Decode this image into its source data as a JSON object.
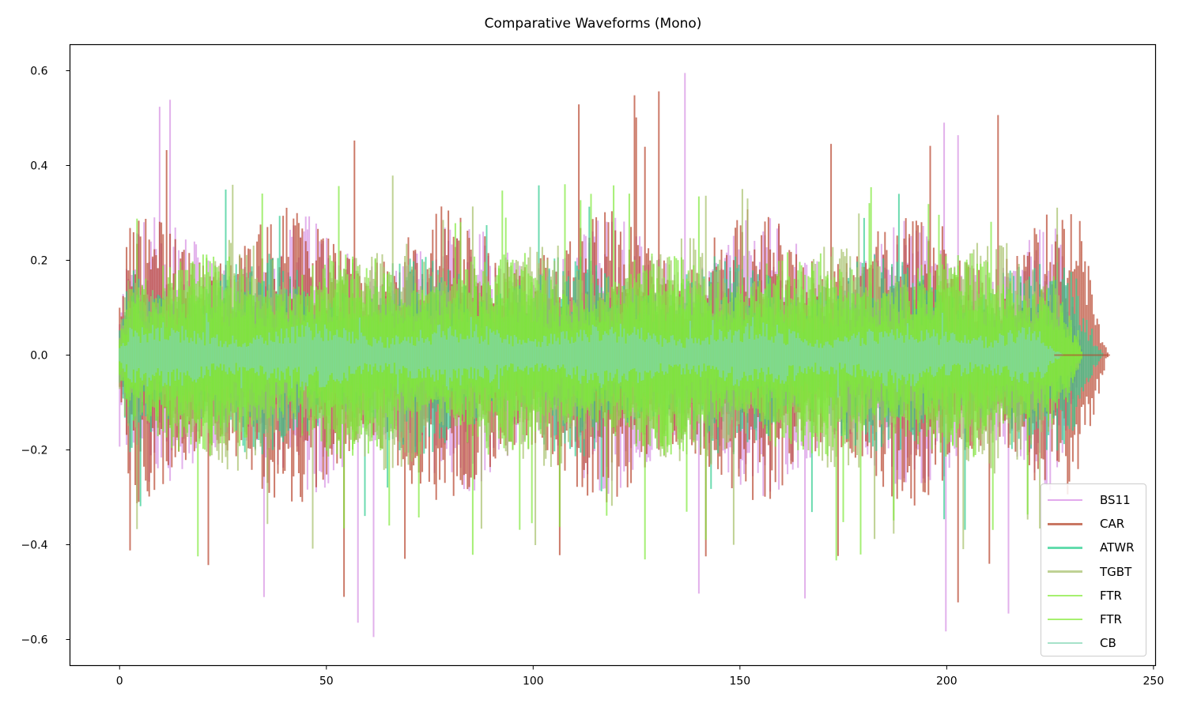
{
  "chart_data": {
    "type": "line",
    "title": "Comparative Waveforms (Mono)",
    "xlabel": "",
    "ylabel": "",
    "xlim": [
      -12,
      250.5
    ],
    "ylim": [
      -0.655,
      0.655
    ],
    "xticks": [
      0,
      50,
      100,
      150,
      200,
      250
    ],
    "xtick_labels": [
      "0",
      "50",
      "100",
      "150",
      "200",
      "250"
    ],
    "yticks": [
      0.6,
      0.4,
      0.2,
      0.0,
      -0.2,
      -0.4,
      -0.6
    ],
    "ytick_labels": [
      "0.6",
      "0.4",
      "0.2",
      "0.0",
      "−0.2",
      "−0.4",
      "−0.6"
    ],
    "grid": false,
    "legend_position": "lower right",
    "series": [
      {
        "name": "BS11",
        "color": "#d68fe3",
        "alpha": 0.7,
        "duration": 233,
        "peak_pos": 0.6,
        "peak_neg": -0.6,
        "typical_amp": 0.3
      },
      {
        "name": "CAR",
        "color": "#b7412a",
        "alpha": 0.7,
        "duration": 239,
        "peak_pos": 0.575,
        "peak_neg": -0.53,
        "typical_amp": 0.32
      },
      {
        "name": "ATWR",
        "color": "#2ecc8f",
        "alpha": 0.7,
        "duration": 238,
        "peak_pos": 0.36,
        "peak_neg": -0.37,
        "typical_amp": 0.22
      },
      {
        "name": "TGBT",
        "color": "#a4bf66",
        "alpha": 0.7,
        "duration": 233,
        "peak_pos": 0.38,
        "peak_neg": -0.42,
        "typical_amp": 0.25
      },
      {
        "name": "FTR",
        "color": "#7fe83a",
        "alpha": 0.7,
        "duration": 233,
        "peak_pos": 0.37,
        "peak_neg": -0.44,
        "typical_amp": 0.22
      },
      {
        "name": "FTR",
        "color": "#7fe83a",
        "alpha": 0.7,
        "duration": 233,
        "peak_pos": 0.37,
        "peak_neg": -0.44,
        "typical_amp": 0.22
      },
      {
        "name": "CB",
        "color": "#7fd6b2",
        "alpha": 0.7,
        "duration": 228,
        "peak_pos": 0.09,
        "peak_neg": -0.09,
        "typical_amp": 0.07
      }
    ],
    "annotations": []
  },
  "legend": {
    "items": [
      {
        "label": "BS11",
        "color": "#e2a9ec"
      },
      {
        "label": "CAR",
        "color": "#c97763"
      },
      {
        "label": "ATWR",
        "color": "#63dcad"
      },
      {
        "label": "TGBT",
        "color": "#bfd295"
      },
      {
        "label": "FTR",
        "color": "#a6f06f"
      },
      {
        "label": "FTR",
        "color": "#a6f06f"
      },
      {
        "label": "CB",
        "color": "#a6e2c9"
      }
    ]
  }
}
